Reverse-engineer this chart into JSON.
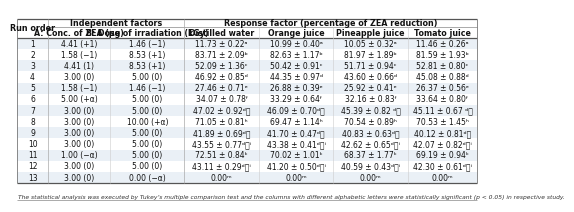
{
  "footer": "The statistical analysis was executed by Tukey’s multiple comparison test and the columns with different alphabetic letters were statistically significant (p < 0.05) in respective study.",
  "rows": [
    [
      "1",
      "4.41 (+1)",
      "1.46 (−1)",
      "11.73 ± 0.22ᵃ",
      "10.99 ± 0.40ᵃ",
      "10.05 ± 0.32ᵃ",
      "11.46 ± 0.26ᵃ"
    ],
    [
      "2",
      "1.58 (−1)",
      "8.53 (+1)",
      "83.71 ± 2.09ᵇ",
      "82.63 ± 1.17ᵇ",
      "81.97 ± 1.89ᵇ",
      "81.59 ± 1.93ᵇ"
    ],
    [
      "3",
      "4.41 (1)",
      "8.53 (+1)",
      "52.09 ± 1.36ᶜ",
      "50.42 ± 0.91ᶜ",
      "51.71 ± 0.94ᶜ",
      "52.81 ± 0.80ᶜ"
    ],
    [
      "4",
      "3.00 (0)",
      "5.00 (0)",
      "46.92 ± 0.85ᵈ",
      "44.35 ± 0.97ᵈ",
      "43.60 ± 0.66ᵈ",
      "45.08 ± 0.88ᵈ"
    ],
    [
      "5",
      "1.58 (−1)",
      "1.46 (−1)",
      "27.46 ± 0.71ᵉ",
      "26.88 ± 0.39ᵉ",
      "25.92 ± 0.41ᵉ",
      "26.37 ± 0.56ᵉ"
    ],
    [
      "6",
      "5.00 (+α)",
      "5.00 (0)",
      "34.07 ± 0.78ᶠ",
      "33.29 ± 0.64ᶠ",
      "32.16 ± 0.83ᶠ",
      "33.64 ± 0.80ᶠ"
    ],
    [
      "7",
      "3.00 (0)",
      "5.00 (0)",
      "47.02 ± 0.92ᵈᶍ",
      "46.09 ± 0.70ᵈᶍ",
      "45.39 ± 0.82 ᵈᶍ",
      "45.11 ± 0.67 ᵈᶍ"
    ],
    [
      "8",
      "3.00 (0)",
      "10.00 (+α)",
      "71.05 ± 0.81ʰ",
      "69.47 ± 1.14ʰ",
      "70.54 ± 0.89ʰ",
      "70.53 ± 1.45ʰ"
    ],
    [
      "9",
      "3.00 (0)",
      "5.00 (0)",
      "41.89 ± 0.69ᵈᶍ",
      "41.70 ± 0.47ᵈᶍ",
      "40.83 ± 0.63ᵈᶍ",
      "40.12 ± 0.81ᵈᶍ"
    ],
    [
      "10",
      "3.00 (0)",
      "5.00 (0)",
      "43.55 ± 0.77ᵈᶍⁱ",
      "43.38 ± 0.41ᵈᶍⁱ",
      "42.62 ± 0.65ᵈᶍⁱ",
      "42.07 ± 0.82ᵈᶍⁱ"
    ],
    [
      "11",
      "1.00 (−α)",
      "5.00 (0)",
      "72.51 ± 0.84ᵏ",
      "70.02 ± 1.01ᵏ",
      "68.37 ± 1.77ᵏ",
      "69.19 ± 0.94ᵏ"
    ],
    [
      "12",
      "3.00 (0)",
      "5.00 (0)",
      "43.11 ± 0.29ᵈᶍⁱ",
      "41.20 ± 0.50ᵈᶍⁱ",
      "40.59 ± 0.43ᵈᶍⁱ",
      "42.30 ± 0.61ᵈᶍⁱ"
    ],
    [
      "13",
      "3.00 (0)",
      "0.00 (−α)",
      "0.00ᵐ",
      "0.00ᵐ",
      "0.00ᵐ",
      "0.00ᵐ"
    ]
  ],
  "bg_color": "#ffffff",
  "odd_row_bg": "#eaf0f6",
  "even_row_bg": "#ffffff",
  "font_size": 5.5,
  "header_font_size": 5.8
}
